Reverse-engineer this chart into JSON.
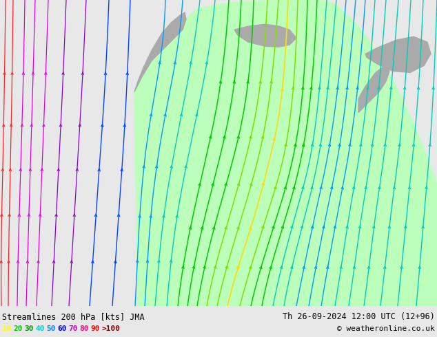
{
  "title_left": "Streamlines 200 hPa [kts] JMA",
  "title_right": "Th 26-09-2024 12:00 UTC (12+96)",
  "copyright": "© weatheronline.co.uk",
  "legend_values": [
    "10",
    "20",
    "30",
    "40",
    "50",
    "60",
    "70",
    "80",
    "90",
    ">100"
  ],
  "legend_colors": [
    "#ffff00",
    "#00cc00",
    "#009900",
    "#00cccc",
    "#0088ff",
    "#0000ff",
    "#cc00cc",
    "#ff0088",
    "#ff0000",
    "#880000"
  ],
  "bg_color": "#cccccc",
  "map_bg": "#cccccc",
  "land_green": "#bbffbb",
  "land_gray": "#aaaaaa",
  "figsize": [
    6.34,
    4.9
  ],
  "dpi": 100,
  "bottom_bg": "#e8e8e8",
  "streamline_colors": {
    "10": "#ff2200",
    "20": "#cc00cc",
    "30": "#aa00ff",
    "40": "#0055ff",
    "50": "#00aaff",
    "60": "#00ccaa",
    "70": "#00dd00",
    "80": "#88dd00",
    "90": "#ffdd00",
    "100": "#ffaa00"
  }
}
